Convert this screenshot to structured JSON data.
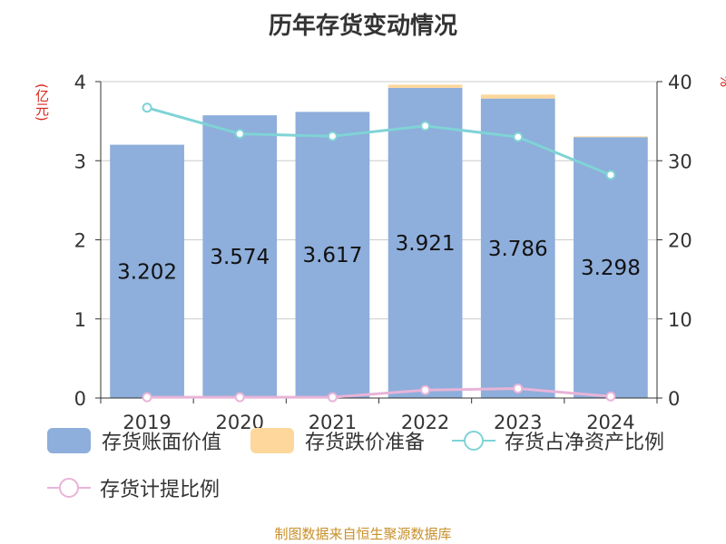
{
  "title": "历年存货变动情况",
  "left_axis_unit": "(亿元)",
  "right_axis_unit": "%",
  "source_text": "制图数据来自恒生聚源数据库",
  "colors": {
    "bar_value": "#8eaedb",
    "bar_reserve": "#fdd79b",
    "line_ratio": "#7fd3d6",
    "line_provision": "#e8b4d8",
    "axis": "#333333",
    "grid": "#cccccc"
  },
  "legend": [
    {
      "label": "存货账面价值",
      "type": "bar",
      "color": "#8eaedb"
    },
    {
      "label": "存货跌价准备",
      "type": "bar",
      "color": "#fdd79b"
    },
    {
      "label": "存货占净资产比例",
      "type": "line",
      "color": "#7fd3d6"
    },
    {
      "label": "存货计提比例",
      "type": "line",
      "color": "#e8b4d8"
    }
  ],
  "chart_data": {
    "type": "bar",
    "categories": [
      "2019",
      "2020",
      "2021",
      "2022",
      "2023",
      "2024"
    ],
    "series": [
      {
        "name": "存货账面价值",
        "axis": "left",
        "kind": "bar",
        "values": [
          3.202,
          3.574,
          3.617,
          3.921,
          3.786,
          3.298
        ],
        "data_labels": [
          "3.202",
          "3.574",
          "3.617",
          "3.921",
          "3.786",
          "3.298"
        ]
      },
      {
        "name": "存货跌价准备",
        "axis": "left",
        "kind": "bar-stacked",
        "values": [
          0.0,
          0.0,
          0.0,
          0.04,
          0.05,
          0.01
        ]
      },
      {
        "name": "存货占净资产比例",
        "axis": "right",
        "kind": "line",
        "values": [
          36.7,
          33.4,
          33.1,
          34.4,
          33.0,
          28.2
        ]
      },
      {
        "name": "存货计提比例",
        "axis": "right",
        "kind": "line",
        "values": [
          0.1,
          0.1,
          0.1,
          1.0,
          1.2,
          0.2
        ]
      }
    ],
    "left_ylim": [
      0,
      4
    ],
    "left_ticks": [
      "0",
      "1",
      "2",
      "3",
      "4"
    ],
    "right_ylim": [
      0,
      40
    ],
    "right_ticks": [
      "0",
      "10",
      "20",
      "30",
      "40"
    ],
    "grid": true,
    "legend_position": "bottom"
  }
}
